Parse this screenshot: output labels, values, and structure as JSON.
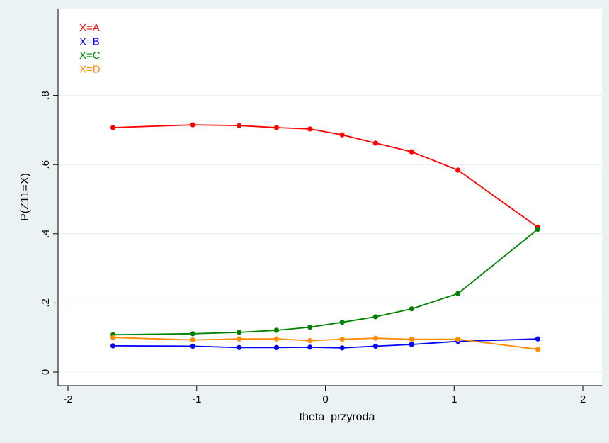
{
  "chart_data": {
    "type": "line",
    "title": "",
    "xlabel": "theta_przyroda",
    "ylabel": "P(Z11=X)",
    "xlim": [
      -2,
      2
    ],
    "ylim": [
      0,
      1.0
    ],
    "x_ticks": [
      {
        "value": -2,
        "label": "-2"
      },
      {
        "value": -1,
        "label": "-1"
      },
      {
        "value": 0,
        "label": "0"
      },
      {
        "value": 1,
        "label": "1"
      },
      {
        "value": 2,
        "label": "2"
      }
    ],
    "y_ticks": [
      {
        "value": 0,
        "label": "0"
      },
      {
        "value": 0.2,
        "label": ".2"
      },
      {
        "value": 0.4,
        "label": ".4"
      },
      {
        "value": 0.6,
        "label": ".6"
      },
      {
        "value": 0.8,
        "label": ".8"
      }
    ],
    "grid": true,
    "legend_position": "top-left",
    "x": [
      -1.65,
      -1.03,
      -0.67,
      -0.38,
      -0.12,
      0.13,
      0.39,
      0.67,
      1.03,
      1.65
    ],
    "series": [
      {
        "name": "X=A",
        "color": "#ff0000",
        "values": [
          0.707,
          0.715,
          0.713,
          0.707,
          0.703,
          0.686,
          0.662,
          0.637,
          0.584,
          0.419
        ]
      },
      {
        "name": "X=B",
        "color": "#0000ff",
        "values": [
          0.076,
          0.075,
          0.071,
          0.071,
          0.072,
          0.07,
          0.075,
          0.08,
          0.089,
          0.096
        ]
      },
      {
        "name": "X=C",
        "color": "#008000",
        "values": [
          0.108,
          0.111,
          0.115,
          0.121,
          0.13,
          0.144,
          0.16,
          0.183,
          0.227,
          0.413
        ]
      },
      {
        "name": "X=D",
        "color": "#ff8c00",
        "values": [
          0.1,
          0.093,
          0.096,
          0.096,
          0.091,
          0.095,
          0.098,
          0.095,
          0.095,
          0.066
        ]
      }
    ]
  }
}
